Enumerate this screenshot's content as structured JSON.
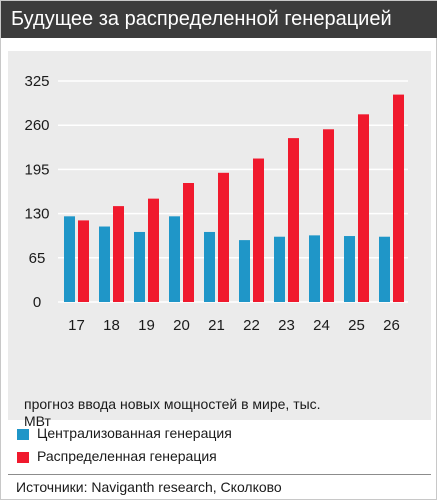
{
  "title": "Будущее за распределенной генерацией",
  "note": "прогноз ввода новых мощностей в мире, тыс. МВт",
  "source": "Источники: Naviganth research, Сколково",
  "colors": {
    "header_bg": "#3c3c3c",
    "panel_bg": "#ebebeb",
    "centralized": "#1f96c8",
    "distributed": "#f0192d",
    "grid": "#ffffff"
  },
  "chart_data": {
    "type": "bar",
    "categories": [
      "17",
      "18",
      "19",
      "20",
      "21",
      "22",
      "23",
      "24",
      "25",
      "26"
    ],
    "series": [
      {
        "name": "Централизованная генерация",
        "color": "#1f96c8",
        "values": [
          126,
          111,
          103,
          126,
          103,
          91,
          96,
          98,
          97,
          96
        ]
      },
      {
        "name": "Распределенная генерация",
        "color": "#f0192d",
        "values": [
          120,
          141,
          152,
          175,
          190,
          211,
          241,
          254,
          276,
          305
        ]
      }
    ],
    "yticks": [
      0,
      65,
      130,
      195,
      260,
      325
    ],
    "ylim": [
      0,
      325
    ],
    "grid": true,
    "legend_position": "bottom"
  }
}
